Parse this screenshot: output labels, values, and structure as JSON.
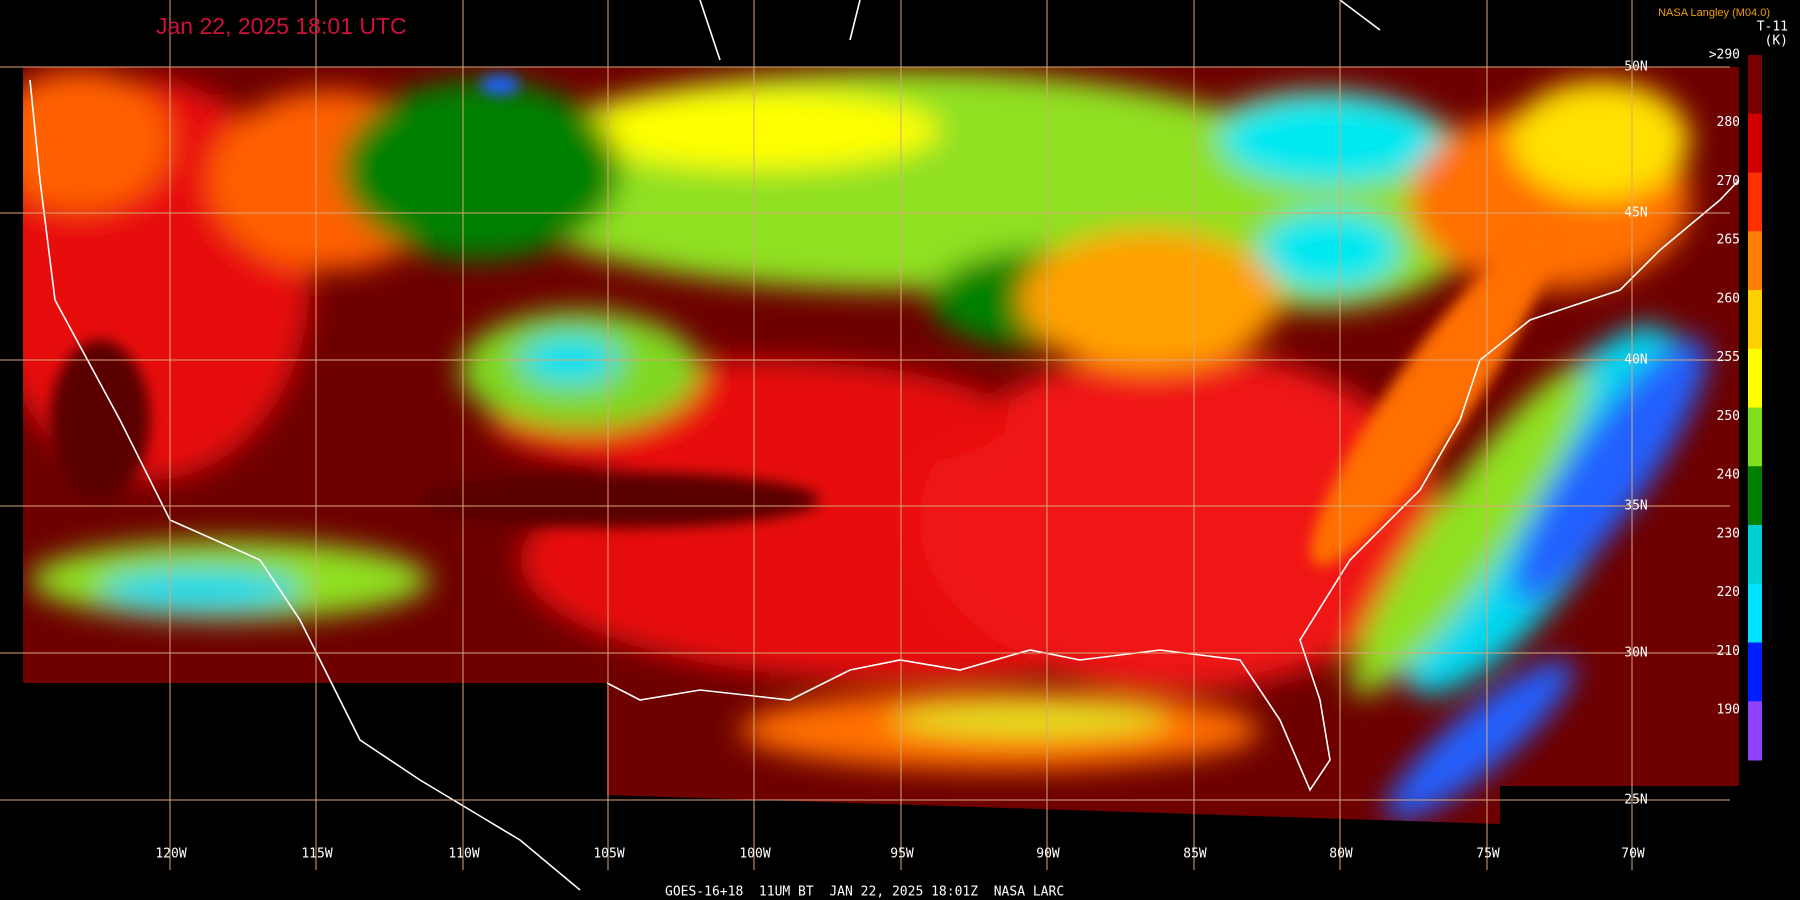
{
  "header": {
    "title": "Jan 22, 2025 18:01 UTC",
    "credit": "NASA Langley (M04.0)"
  },
  "colorbar": {
    "title": "T-11",
    "unit": "(K)",
    "labels": [
      ">290",
      "280",
      "270",
      "265",
      "260",
      "255",
      "250",
      "240",
      "230",
      "220",
      "210",
      "190"
    ]
  },
  "longitude_labels": [
    "120W",
    "115W",
    "110W",
    "105W",
    "100W",
    "95W",
    "90W",
    "85W",
    "80W",
    "75W",
    "70W"
  ],
  "latitude_labels": [
    "50N",
    "45N",
    "40N",
    "35N",
    "30N",
    "25N"
  ],
  "footer": "GOES-16+18  11UM BT  JAN 22, 2025 18:01Z  NASA LARC"
}
